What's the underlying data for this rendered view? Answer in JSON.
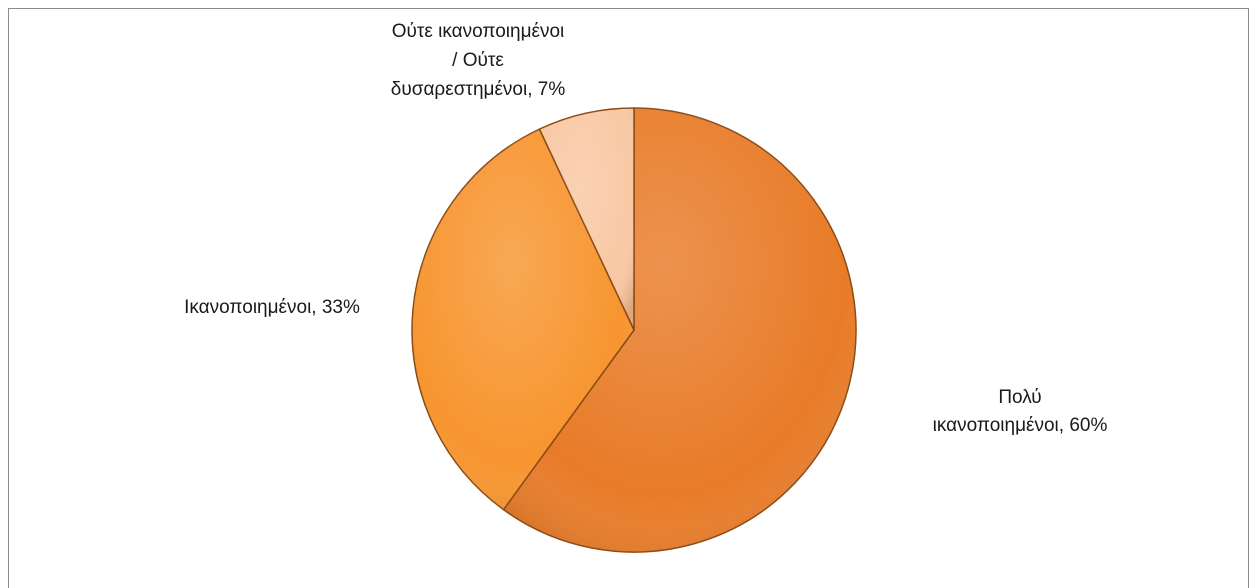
{
  "chart_data": {
    "type": "pie",
    "title": "",
    "start_angle_deg": 0,
    "direction": "clockwise",
    "slices": [
      {
        "label_lines": [
          "Πολύ",
          "ικανοποιημένοι, 60%"
        ],
        "category": "Πολύ ικανοποιημένοι",
        "value": 60,
        "color": "#E87B28"
      },
      {
        "label_lines": [
          "Ικανοποιημένοι, 33%"
        ],
        "category": "Ικανοποιημένοι",
        "value": 33,
        "color": "#F7952F"
      },
      {
        "label_lines": [
          "Ούτε ικανοποιημένοι",
          "/ Ούτε",
          "δυσαρεστημένοι, 7%"
        ],
        "category": "Ούτε ικανοποιημένοι / Ούτε δυσαρεστημένοι",
        "value": 7,
        "color": "#F9C8A4"
      }
    ]
  }
}
